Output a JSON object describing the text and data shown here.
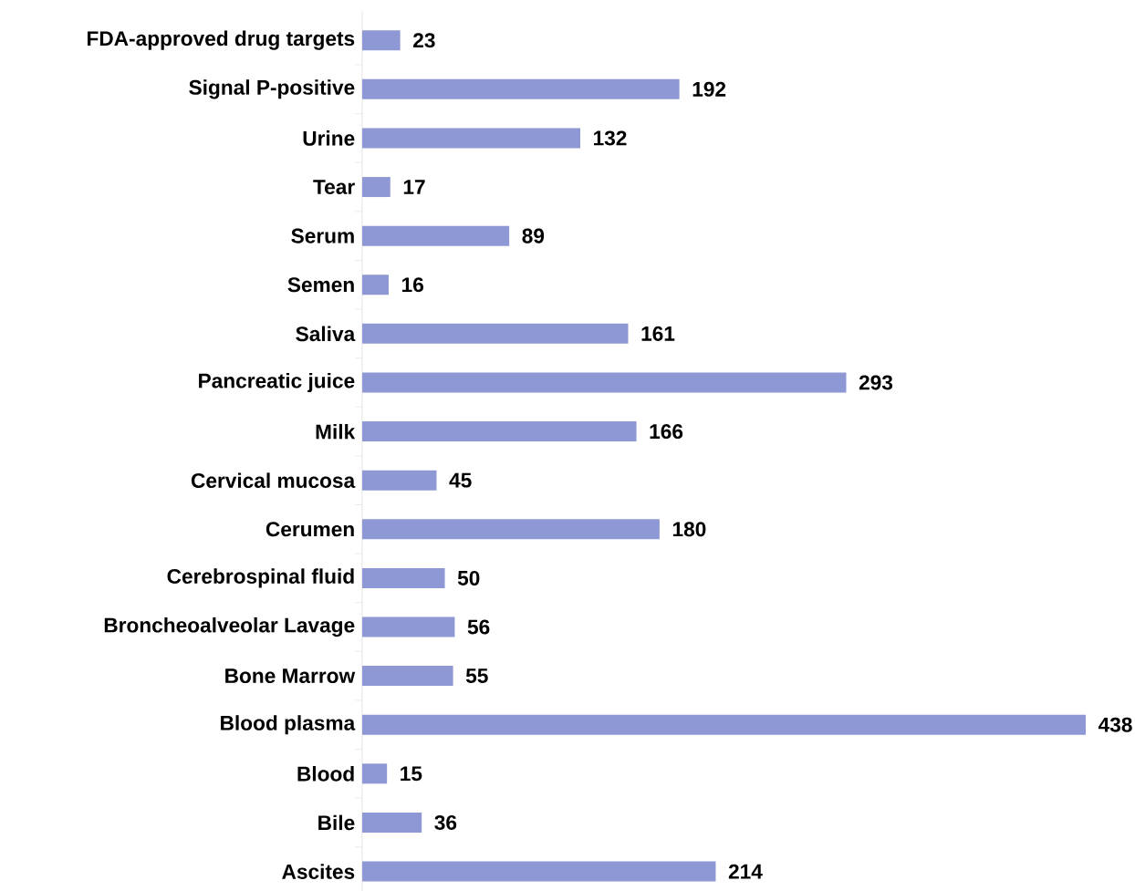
{
  "chart_data": {
    "type": "bar",
    "orientation": "horizontal",
    "categories": [
      "FDA-approved drug targets",
      "Signal P-positive",
      "Urine",
      "Tear",
      "Serum",
      "Semen",
      "Saliva",
      "Pancreatic juice",
      "Milk",
      "Cervical mucosa",
      "Cerumen",
      "Cerebrospinal fluid",
      "Broncheoalveolar Lavage",
      "Bone Marrow",
      "Blood plasma",
      "Blood",
      "Bile",
      "Ascites"
    ],
    "values": [
      23,
      192,
      132,
      17,
      89,
      16,
      161,
      293,
      166,
      45,
      180,
      50,
      56,
      55,
      438,
      15,
      36,
      214
    ],
    "color": "#8e98d4",
    "data_labels": true
  }
}
